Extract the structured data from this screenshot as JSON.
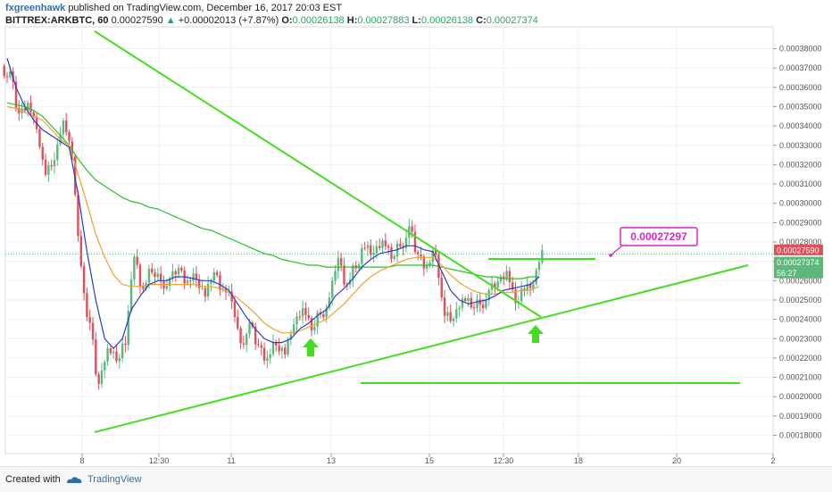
{
  "header": {
    "author": "fxgreenhawk",
    "published_text": "published on TradingView.com, December 16, 2017 20:03 EST",
    "symbol": "BITTREX:ARKBTC, 60",
    "last_price": "0.00027590",
    "change_arrow": "▲",
    "change": "+0.00002013 (+7.87%)",
    "open_label": "O:",
    "open": "0.00026138",
    "high_label": "H:",
    "high": "0.00027883",
    "low_label": "L:",
    "low": "0.00026138",
    "close_label": "C:",
    "close": "0.00027374"
  },
  "footer": {
    "created_with": "Created with",
    "brand": "TradingView"
  },
  "colors": {
    "up_candle": "#5cb87a",
    "down_candle": "#e0505a",
    "ma_fast": "#2a3ccc",
    "ma_mid": "#f0a030",
    "ma_slow": "#28c028",
    "drawing": "#44dd22",
    "annotation": "#dd22cc",
    "label_last": "#e0505a",
    "label_close": "#5cb87a"
  },
  "chart_data": {
    "type": "candlestick",
    "grid": true,
    "ylim": [
      0.000174,
      0.000388
    ],
    "y_ticks": [
      "0.00018000",
      "0.00019000",
      "0.00020000",
      "0.00021000",
      "0.00022000",
      "0.00023000",
      "0.00024000",
      "0.00025000",
      "0.00026000",
      "0.00027000",
      "0.00028000",
      "0.00029000",
      "0.00030000",
      "0.00031000",
      "0.00032000",
      "0.00033000",
      "0.00034000",
      "0.00035000",
      "0.00036000",
      "0.00037000",
      "0.00038000"
    ],
    "x_ticks": [
      "8",
      "12:30",
      "11",
      "13",
      "15",
      "12:30",
      "18",
      "20",
      "2"
    ],
    "price_labels": {
      "last": "0.00027590",
      "close": "0.00027374",
      "countdown": "56:27"
    },
    "annotation": {
      "text": "0.00027297",
      "value": 0.00027297
    },
    "close_series": [
      0.000365,
      0.000345,
      0.000352,
      0.00034,
      0.000318,
      0.00032,
      0.000342,
      0.000325,
      0.00027,
      0.000235,
      0.000205,
      0.000225,
      0.00022,
      0.00023,
      0.00027,
      0.000255,
      0.000265,
      0.000262,
      0.000258,
      0.000265,
      0.00026,
      0.000262,
      0.000255,
      0.000262,
      0.000255,
      0.00025,
      0.00023,
      0.000235,
      0.000225,
      0.00022,
      0.000228,
      0.000225,
      0.000235,
      0.000245,
      0.000235,
      0.000245,
      0.000248,
      0.00027,
      0.000258,
      0.000268,
      0.00028,
      0.000272,
      0.00028,
      0.000272,
      0.00028,
      0.000285,
      0.000272,
      0.000268,
      0.000275,
      0.000245,
      0.000238,
      0.00025,
      0.000247,
      0.00025,
      0.000252,
      0.000258,
      0.000265,
      0.00025,
      0.000258,
      0.000256,
      0.000275
    ],
    "ma_fast": [
      0.000375,
      0.00036,
      0.00035,
      0.000343,
      0.000338,
      0.000335,
      0.000332,
      0.000329,
      0.000305,
      0.000275,
      0.00025,
      0.00023,
      0.000225,
      0.00023,
      0.000245,
      0.000252,
      0.000258,
      0.00026,
      0.00026,
      0.000262,
      0.000262,
      0.000261,
      0.00026,
      0.00026,
      0.000258,
      0.000255,
      0.000248,
      0.000241,
      0.000235,
      0.00023,
      0.000228,
      0.000228,
      0.00023,
      0.000235,
      0.000238,
      0.000242,
      0.000245,
      0.000252,
      0.000256,
      0.000261,
      0.000267,
      0.000271,
      0.000274,
      0.000275,
      0.000276,
      0.000278,
      0.000278,
      0.000276,
      0.000275,
      0.000265,
      0.000255,
      0.00025,
      0.000248,
      0.000249,
      0.00025,
      0.000252,
      0.000255,
      0.000256,
      0.000257,
      0.000258,
      0.000262
    ],
    "ma_mid": [
      0.00035,
      0.000349,
      0.000347,
      0.000345,
      0.000343,
      0.000338,
      0.000333,
      0.00033,
      0.000315,
      0.0003,
      0.000284,
      0.000272,
      0.000263,
      0.000258,
      0.000257,
      0.000257,
      0.000258,
      0.000258,
      0.000258,
      0.000258,
      0.000258,
      0.000258,
      0.000257,
      0.000257,
      0.000256,
      0.000254,
      0.000251,
      0.000247,
      0.000243,
      0.000238,
      0.000235,
      0.000233,
      0.000233,
      0.000234,
      0.000236,
      0.000238,
      0.00024,
      0.000244,
      0.000248,
      0.000253,
      0.000258,
      0.000262,
      0.000265,
      0.000267,
      0.000269,
      0.000271,
      0.000272,
      0.000272,
      0.000272,
      0.000268,
      0.000263,
      0.000259,
      0.000256,
      0.000254,
      0.000253,
      0.000253,
      0.000254,
      0.000254,
      0.000255,
      0.000255,
      0.000257
    ],
    "ma_slow": [
      0.000352,
      0.000351,
      0.00035,
      0.000348,
      0.000345,
      0.00034,
      0.000335,
      0.00033,
      0.000323,
      0.000317,
      0.000312,
      0.000309,
      0.000306,
      0.000303,
      0.000301,
      0.0003,
      0.000298,
      0.000297,
      0.000295,
      0.000293,
      0.000291,
      0.000289,
      0.000287,
      0.000286,
      0.000284,
      0.000282,
      0.00028,
      0.000278,
      0.000276,
      0.000274,
      0.000273,
      0.000271,
      0.00027,
      0.000269,
      0.000268,
      0.000268,
      0.000267,
      0.000267,
      0.000267,
      0.000267,
      0.000267,
      0.000267,
      0.000267,
      0.000267,
      0.000268,
      0.000268,
      0.000268,
      0.000268,
      0.000268,
      0.000267,
      0.000266,
      0.000265,
      0.000264,
      0.000263,
      0.000262,
      0.000262,
      0.000261,
      0.000261,
      0.000261,
      0.000262,
      0.000262
    ]
  }
}
